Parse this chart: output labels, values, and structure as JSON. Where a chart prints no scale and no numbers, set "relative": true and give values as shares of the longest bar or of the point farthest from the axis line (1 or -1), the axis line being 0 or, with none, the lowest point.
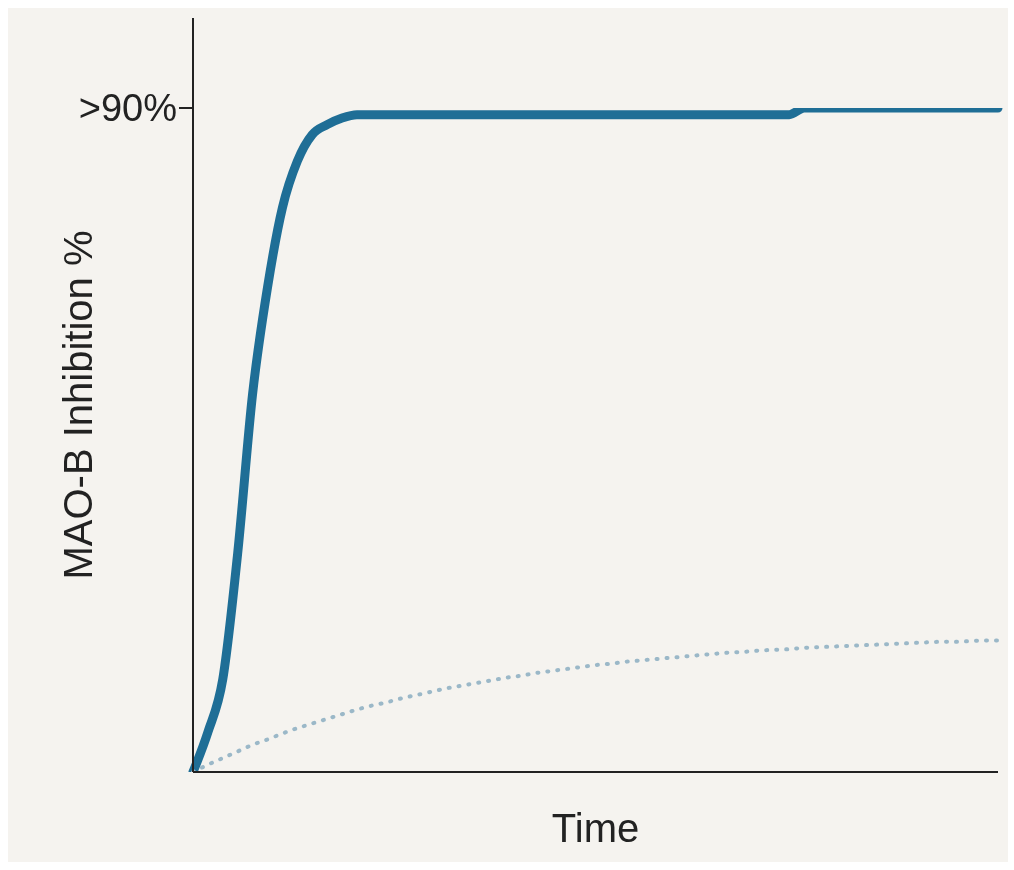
{
  "chart_data": {
    "type": "line",
    "relative": true,
    "xlabel": "Time",
    "ylabel": "MAO-B Inhibition %",
    "categories": [
      null,
      null,
      null,
      null,
      null,
      null,
      null,
      null,
      null,
      null,
      null,
      null,
      null,
      null,
      null,
      null,
      null,
      null,
      null,
      null,
      null,
      null,
      null,
      null,
      null,
      null,
      null,
      null,
      null,
      null,
      null,
      null,
      null,
      null,
      null,
      null,
      null,
      null,
      null,
      null,
      null,
      null,
      null,
      null,
      null,
      null,
      null,
      null,
      null,
      null,
      null,
      null,
      null,
      null,
      null
    ],
    "series": [
      {
        "color": "#1f6e96",
        "line_style": "solid",
        "values": [
          0,
          0.06,
          0.14,
          0.33,
          0.57,
          0.73,
          0.85,
          0.92,
          0.96,
          0.975,
          0.985,
          0.99,
          0.99,
          0.99,
          0.99,
          0.99,
          0.99,
          0.99,
          0.99,
          0.99,
          0.99,
          0.99,
          0.99,
          0.99,
          0.99,
          0.99,
          0.99,
          0.99,
          0.99,
          0.99,
          0.99,
          0.99,
          0.99,
          0.99,
          0.99,
          0.99,
          0.99,
          0.99,
          0.99,
          0.99,
          0.99,
          1,
          1,
          1,
          1,
          1,
          1,
          1,
          1,
          1,
          1,
          1,
          1,
          1,
          1
        ]
      },
      {
        "color": "#9bb8c8",
        "line_style": "dotted",
        "values": [
          0,
          0.011,
          0.021,
          0.031,
          0.041,
          0.049,
          0.058,
          0.066,
          0.073,
          0.08,
          0.087,
          0.094,
          0.1,
          0.105,
          0.111,
          0.116,
          0.121,
          0.126,
          0.13,
          0.134,
          0.138,
          0.142,
          0.145,
          0.149,
          0.152,
          0.155,
          0.158,
          0.161,
          0.163,
          0.166,
          0.168,
          0.17,
          0.172,
          0.174,
          0.176,
          0.178,
          0.18,
          0.181,
          0.183,
          0.184,
          0.185,
          0.187,
          0.188,
          0.189,
          0.19,
          0.191,
          0.192,
          0.193,
          0.194,
          0.195,
          0.196,
          0.196,
          0.197,
          0.198,
          0.198
        ]
      }
    ],
    "annotations": [
      ">90%"
    ],
    "grid": false,
    "legend": false,
    "marker": "none"
  }
}
